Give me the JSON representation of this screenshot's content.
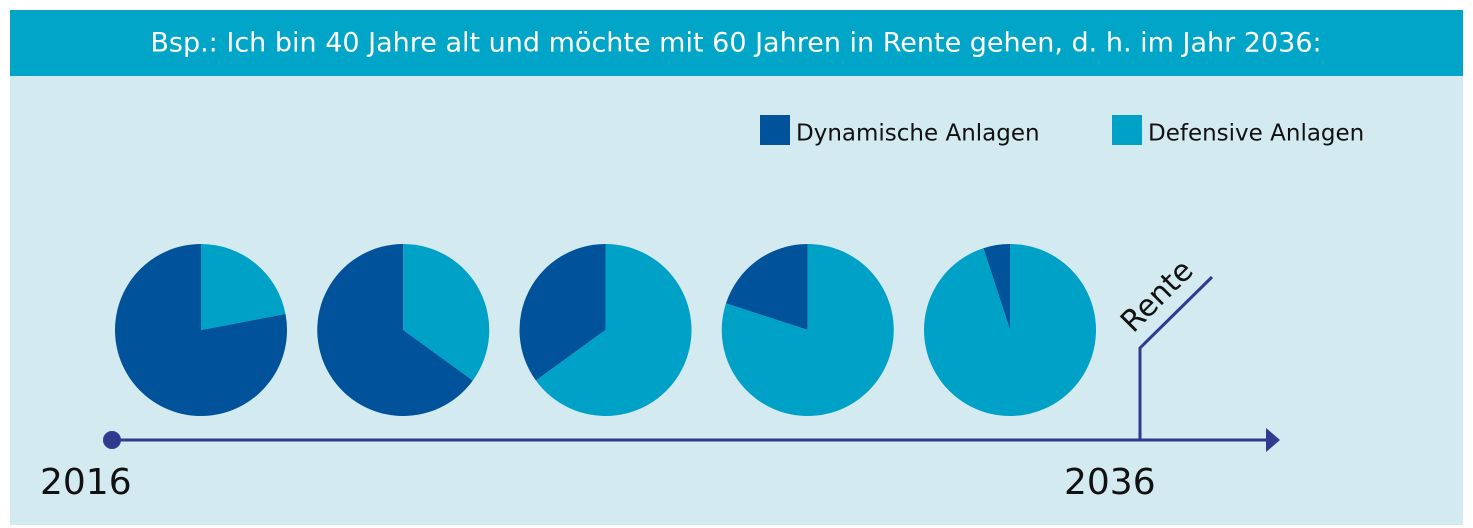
{
  "chart_data": {
    "type": "pie",
    "title": "Bsp.: Ich bin 40 Jahre alt und möchte mit 60 Jahren in Rente gehen, d. h. im Jahr 2036:",
    "series": [
      {
        "name": "Dynamische Anlagen",
        "color": "#00529b",
        "values": [
          78,
          65,
          35,
          20,
          5
        ]
      },
      {
        "name": "Defensive Anlagen",
        "color": "#00a1c7",
        "values": [
          22,
          35,
          65,
          80,
          95
        ]
      }
    ],
    "timeline": {
      "start": "2016",
      "end": "2036",
      "marker": "Rente"
    }
  }
}
